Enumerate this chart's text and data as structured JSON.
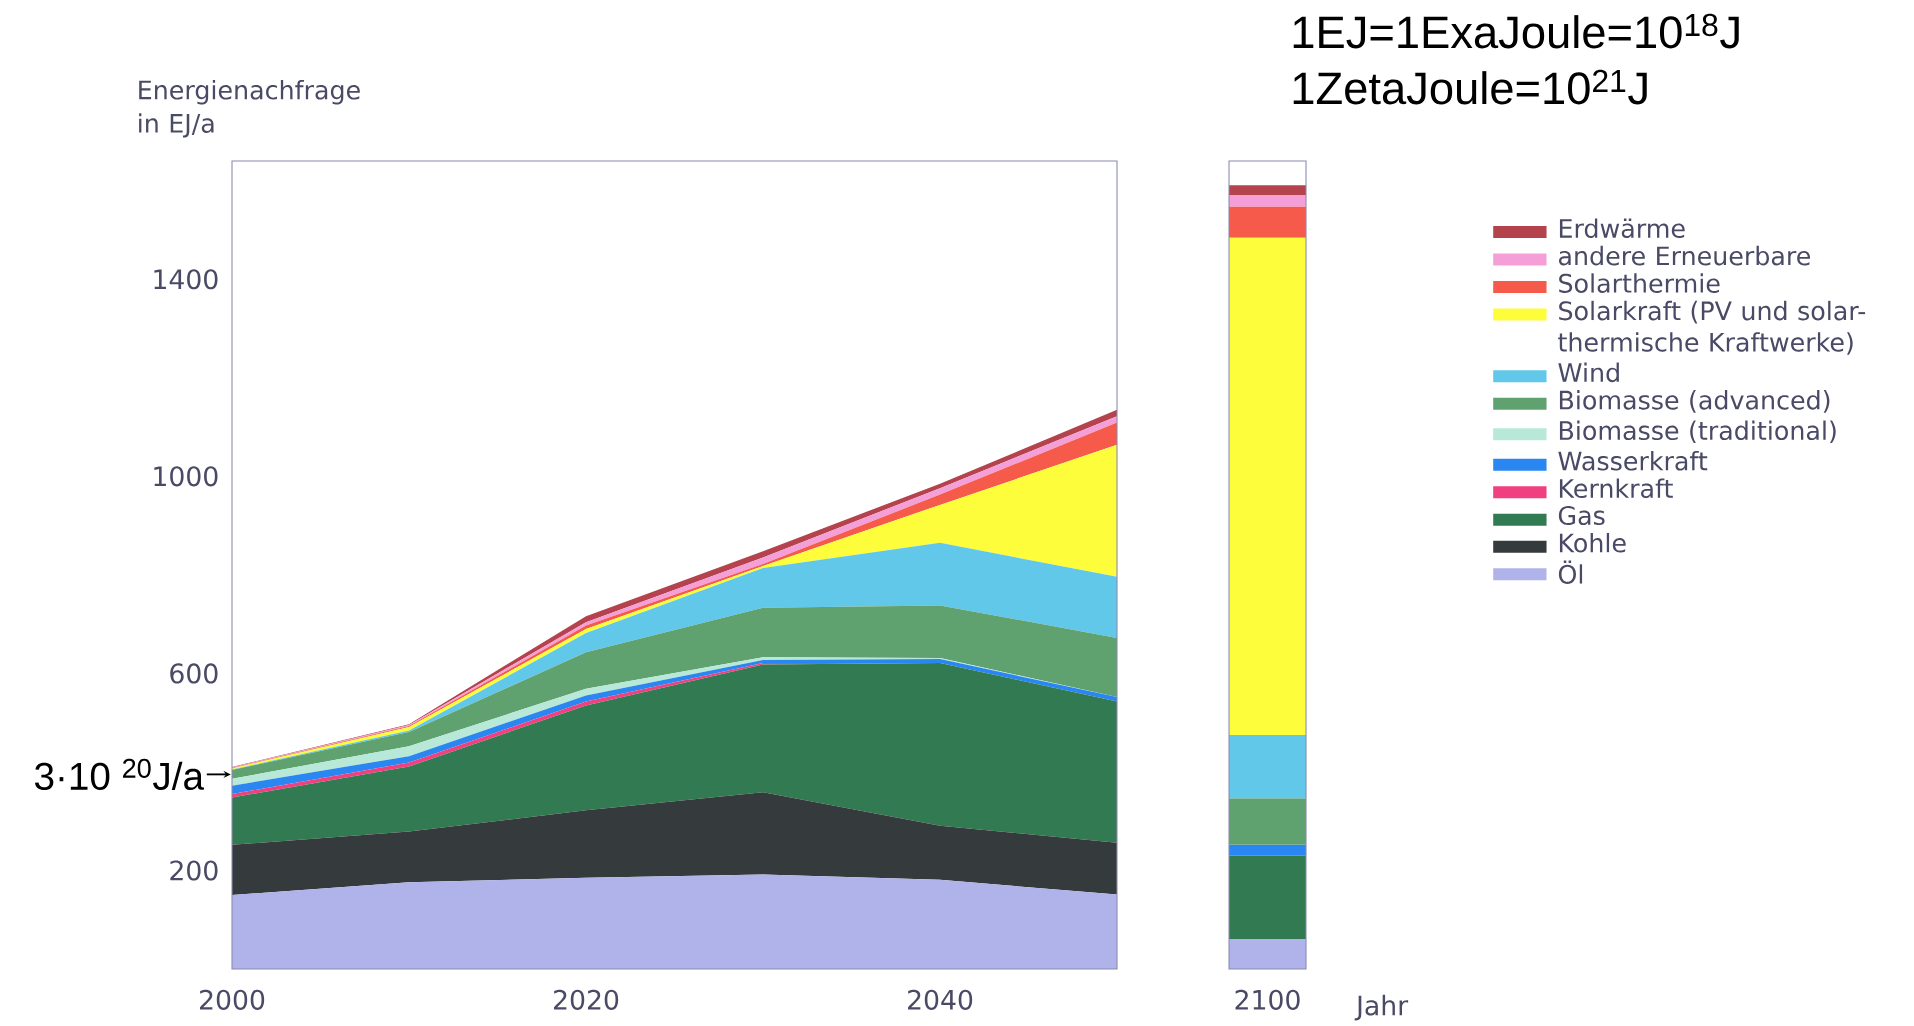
{
  "chart_data": [
    {
      "type": "area",
      "stacked": true,
      "x": [
        2000,
        2010,
        2020,
        2030,
        2040,
        2050
      ],
      "xlim": [
        2000,
        2050
      ],
      "xticks": [
        2000,
        2020,
        2040
      ],
      "ylim": [
        0,
        1640
      ],
      "yticks": [
        200,
        600,
        1000,
        1400
      ],
      "ylabel": "Energienachfrage in EJ/a",
      "legend": "right",
      "annotations": [
        "1EJ=1ExaJoule=10$^{18}$J",
        "1ZetaJoule=10$^{21}$J",
        {
          "text": "3·10 $^{20}$J/a",
          "x": 2000,
          "y": 395
        }
      ],
      "series": [
        {
          "name": "Öl",
          "color": "#b0b3ea",
          "values": [
            150,
            176,
            185,
            192,
            181,
            151
          ]
        },
        {
          "name": "Kohle",
          "color": "#353a3c",
          "values": [
            102,
            103,
            137,
            167,
            110,
            105
          ]
        },
        {
          "name": "Gas",
          "color": "#327a52",
          "values": [
            96,
            132,
            213,
            259,
            330,
            287
          ]
        },
        {
          "name": "Kernkraft",
          "color": "#f0407f",
          "values": [
            7,
            8,
            8,
            3,
            0,
            0
          ]
        },
        {
          "name": "Wasserkraft",
          "color": "#2a86f0",
          "values": [
            17,
            13,
            12,
            6,
            8,
            9
          ]
        },
        {
          "name": "Biomasse (traditional)",
          "color": "#b7e8d8",
          "values": [
            14,
            20,
            14,
            6,
            2,
            0
          ]
        },
        {
          "name": "Biomasse (advanced)",
          "color": "#5fa26f",
          "values": [
            18,
            29,
            74,
            100,
            107,
            120
          ]
        },
        {
          "name": "Wind",
          "color": "#62c8ea",
          "values": [
            1,
            3,
            39,
            81,
            127,
            124
          ]
        },
        {
          "name": "Solarkraft (PV und solar-thermische Kraftwerke)",
          "color": "#fdfd3c",
          "values": [
            2,
            7,
            8,
            4,
            77,
            268
          ]
        },
        {
          "name": "Solarthermie",
          "color": "#f55a4a",
          "values": [
            1,
            2,
            7,
            4,
            21,
            45
          ]
        },
        {
          "name": "andere Erneuerbare",
          "color": "#f59fd8",
          "values": [
            1,
            2,
            7,
            13,
            13,
            13
          ]
        },
        {
          "name": "Erdwärme",
          "color": "#b5434e",
          "values": [
            1,
            2,
            12,
            13,
            9,
            13
          ]
        }
      ]
    },
    {
      "type": "bar",
      "stacked": true,
      "categories": [
        "2100"
      ],
      "xlabel": "Jahr",
      "ylim": [
        0,
        1640
      ],
      "tick_labels": "x",
      "series": [
        {
          "color": "#b0b3ea",
          "values": [
            61
          ]
        },
        {
          "color": "#353a3c",
          "values": [
            0
          ]
        },
        {
          "color": "#327a52",
          "values": [
            169
          ]
        },
        {
          "color": "#f0407f",
          "values": [
            0
          ]
        },
        {
          "color": "#2a86f0",
          "values": [
            22
          ]
        },
        {
          "color": "#b7e8d8",
          "values": [
            0
          ]
        },
        {
          "color": "#5fa26f",
          "values": [
            94
          ]
        },
        {
          "color": "#62c8ea",
          "values": [
            129
          ]
        },
        {
          "color": "#fdfd3c",
          "values": [
            1009
          ]
        },
        {
          "color": "#f55a4a",
          "values": [
            63
          ]
        },
        {
          "color": "#f59fd8",
          "values": [
            24
          ]
        },
        {
          "color": "#b5434e",
          "values": [
            20
          ]
        }
      ]
    }
  ]
}
